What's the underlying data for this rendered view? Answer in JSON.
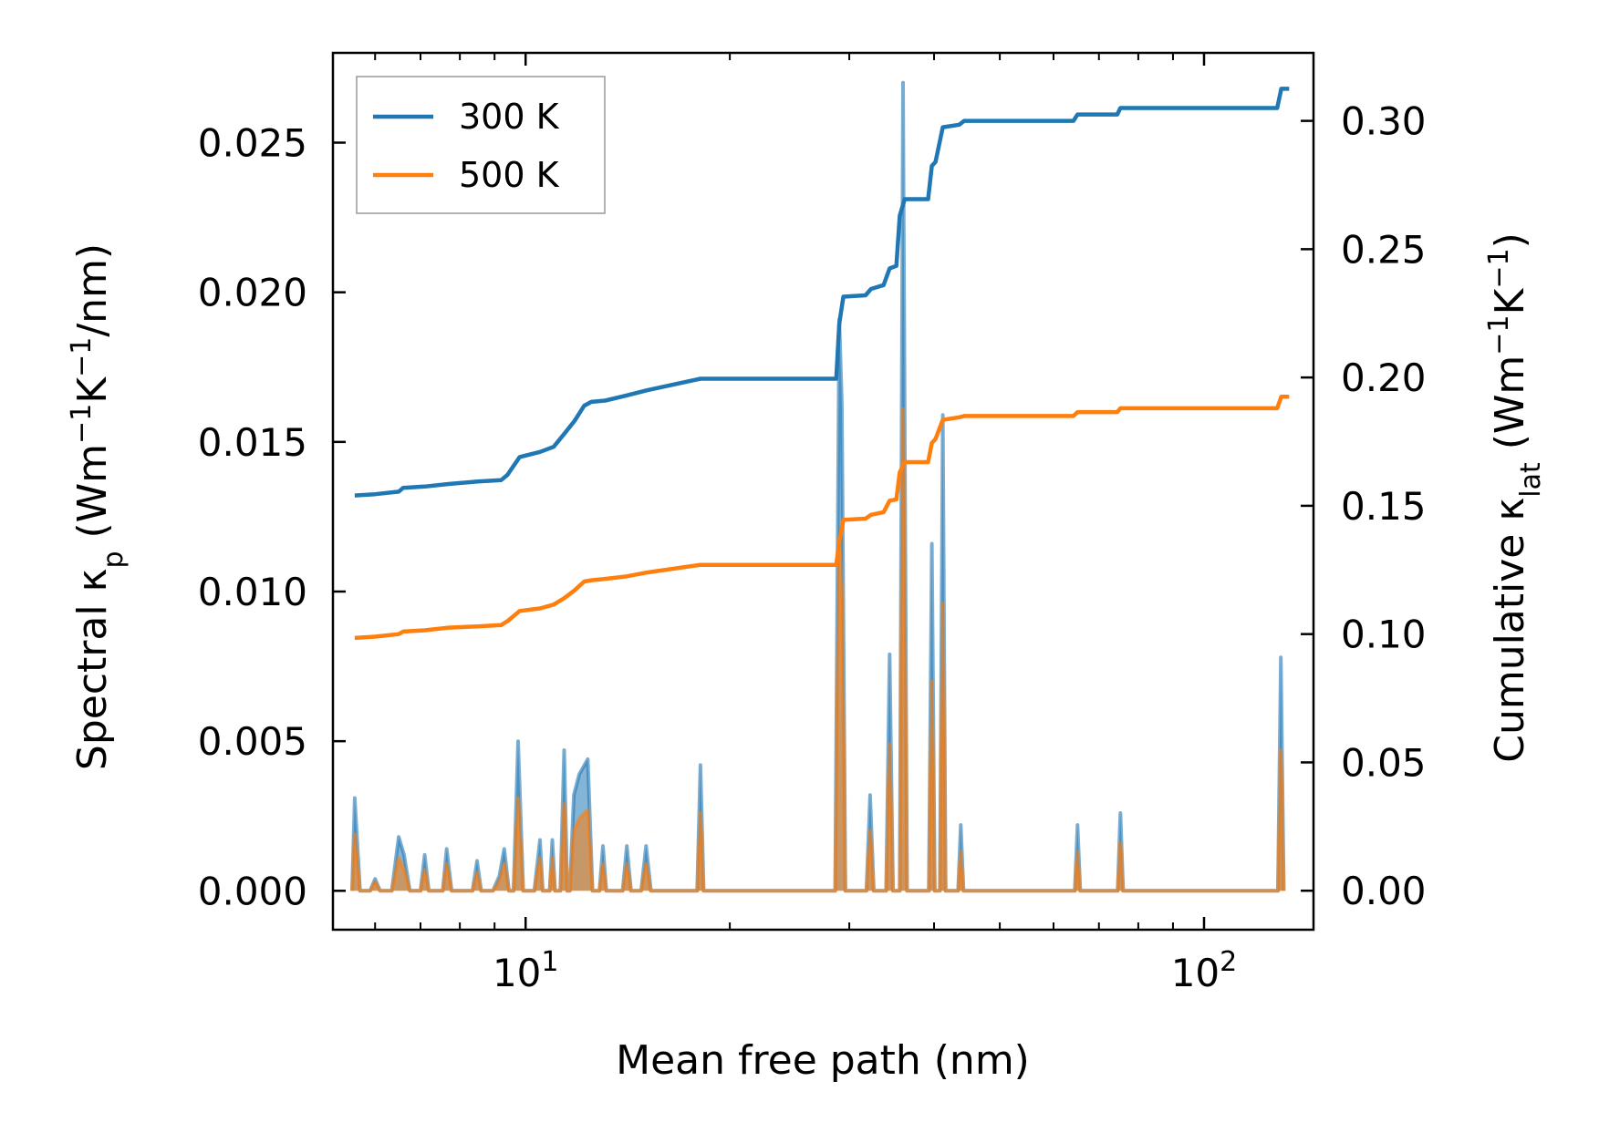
{
  "chart_data": {
    "type": "line",
    "title": "",
    "xlabel": "Mean free path (nm)",
    "ylabel_left": {
      "main": "Spectral κ",
      "sub": "p",
      "unit_pre": " (Wm",
      "sup1": "−1",
      "unit_mid": "K",
      "sup2": "−1",
      "unit_post": "/nm)"
    },
    "ylabel_right": {
      "main": "Cumulative κ",
      "sub": "lat",
      "unit_pre": " (Wm",
      "sup1": "−1",
      "unit_mid": "K",
      "sup2": "−1",
      "unit_post": ")"
    },
    "x_scale": "log",
    "xlim": [
      5.2,
      145
    ],
    "ylim_left": [
      -0.0013,
      0.028
    ],
    "ylim_right": [
      -0.0152,
      0.3265
    ],
    "x_ticks": [
      {
        "value": 10,
        "base": "10",
        "exp": "1"
      },
      {
        "value": 100,
        "base": "10",
        "exp": "2"
      }
    ],
    "y_ticks_left": [
      {
        "value": 0.0,
        "label": "0.000"
      },
      {
        "value": 0.005,
        "label": "0.005"
      },
      {
        "value": 0.01,
        "label": "0.010"
      },
      {
        "value": 0.015,
        "label": "0.015"
      },
      {
        "value": 0.02,
        "label": "0.020"
      },
      {
        "value": 0.025,
        "label": "0.025"
      }
    ],
    "y_ticks_right": [
      {
        "value": 0.0,
        "label": "0.00"
      },
      {
        "value": 0.05,
        "label": "0.05"
      },
      {
        "value": 0.1,
        "label": "0.10"
      },
      {
        "value": 0.15,
        "label": "0.15"
      },
      {
        "value": 0.2,
        "label": "0.20"
      },
      {
        "value": 0.25,
        "label": "0.25"
      },
      {
        "value": 0.3,
        "label": "0.30"
      }
    ],
    "legend": {
      "position": "top-left",
      "entries": [
        "300 K",
        "500 K"
      ]
    },
    "series": [
      {
        "name": "300 K",
        "color": "#1f77b4",
        "spectral": [
          [
            5.55,
            0.0
          ],
          [
            5.6,
            0.0031
          ],
          [
            5.7,
            0.0
          ],
          [
            5.9,
            0.0
          ],
          [
            6.0,
            0.0004
          ],
          [
            6.1,
            0.0
          ],
          [
            6.35,
            0.0
          ],
          [
            6.5,
            0.0018
          ],
          [
            6.62,
            0.0012
          ],
          [
            6.75,
            0.0
          ],
          [
            7.0,
            0.0
          ],
          [
            7.1,
            0.0012
          ],
          [
            7.2,
            0.0
          ],
          [
            7.55,
            0.0
          ],
          [
            7.65,
            0.0014
          ],
          [
            7.78,
            0.0
          ],
          [
            8.35,
            0.0
          ],
          [
            8.48,
            0.001
          ],
          [
            8.6,
            0.0
          ],
          [
            8.95,
            0.0
          ],
          [
            9.15,
            0.0005
          ],
          [
            9.3,
            0.0014
          ],
          [
            9.45,
            0.0
          ],
          [
            9.6,
            0.0
          ],
          [
            9.75,
            0.005
          ],
          [
            9.92,
            0.0
          ],
          [
            10.3,
            0.0
          ],
          [
            10.5,
            0.0017
          ],
          [
            10.6,
            0.0
          ],
          [
            10.85,
            0.0
          ],
          [
            10.95,
            0.0017
          ],
          [
            11.05,
            0.0
          ],
          [
            11.25,
            0.0
          ],
          [
            11.4,
            0.0047
          ],
          [
            11.52,
            0.0
          ],
          [
            11.62,
            0.0
          ],
          [
            11.78,
            0.0032
          ],
          [
            12.0,
            0.0039
          ],
          [
            12.35,
            0.0044
          ],
          [
            12.55,
            0.0
          ],
          [
            12.85,
            0.0
          ],
          [
            13.0,
            0.0015
          ],
          [
            13.15,
            0.0
          ],
          [
            13.9,
            0.0
          ],
          [
            14.1,
            0.0015
          ],
          [
            14.3,
            0.0
          ],
          [
            14.8,
            0.0
          ],
          [
            15.05,
            0.0015
          ],
          [
            15.3,
            0.0
          ],
          [
            17.9,
            0.0
          ],
          [
            18.1,
            0.0042
          ],
          [
            18.3,
            0.0
          ],
          [
            28.6,
            0.0
          ],
          [
            29.0,
            0.0191
          ],
          [
            29.25,
            0.0163
          ],
          [
            29.6,
            0.0
          ],
          [
            31.8,
            0.0
          ],
          [
            32.2,
            0.0032
          ],
          [
            32.6,
            0.0
          ],
          [
            34.0,
            0.0
          ],
          [
            34.4,
            0.0079
          ],
          [
            34.8,
            0.0
          ],
          [
            35.6,
            0.0
          ],
          [
            36.0,
            0.027
          ],
          [
            36.5,
            0.0
          ],
          [
            39.3,
            0.0
          ],
          [
            39.7,
            0.0116
          ],
          [
            40.1,
            0.0
          ],
          [
            40.8,
            0.0
          ],
          [
            41.2,
            0.0159
          ],
          [
            41.6,
            0.0
          ],
          [
            43.4,
            0.0
          ],
          [
            43.8,
            0.0022
          ],
          [
            44.2,
            0.0
          ],
          [
            64.5,
            0.0
          ],
          [
            65.1,
            0.0022
          ],
          [
            65.7,
            0.0
          ],
          [
            74.6,
            0.0
          ],
          [
            75.3,
            0.0026
          ],
          [
            76.0,
            0.0
          ],
          [
            128.5,
            0.0
          ],
          [
            129.8,
            0.0078
          ],
          [
            131.1,
            0.0
          ]
        ],
        "cumulative": [
          [
            5.6,
            0.154
          ],
          [
            6.0,
            0.1545
          ],
          [
            6.5,
            0.1555
          ],
          [
            6.6,
            0.157
          ],
          [
            7.1,
            0.1575
          ],
          [
            7.7,
            0.1585
          ],
          [
            8.5,
            0.1595
          ],
          [
            9.2,
            0.16
          ],
          [
            9.4,
            0.162
          ],
          [
            9.8,
            0.169
          ],
          [
            10.5,
            0.171
          ],
          [
            11.0,
            0.173
          ],
          [
            11.4,
            0.178
          ],
          [
            11.8,
            0.183
          ],
          [
            12.2,
            0.189
          ],
          [
            12.5,
            0.1905
          ],
          [
            13.1,
            0.191
          ],
          [
            14.1,
            0.193
          ],
          [
            15.1,
            0.195
          ],
          [
            18.1,
            0.1995
          ],
          [
            28.7,
            0.1995
          ],
          [
            29.0,
            0.221
          ],
          [
            29.4,
            0.2315
          ],
          [
            31.7,
            0.232
          ],
          [
            32.3,
            0.2345
          ],
          [
            33.7,
            0.236
          ],
          [
            34.4,
            0.2425
          ],
          [
            35.2,
            0.2435
          ],
          [
            35.6,
            0.263
          ],
          [
            36.2,
            0.2695
          ],
          [
            39.2,
            0.2695
          ],
          [
            39.7,
            0.2825
          ],
          [
            40.2,
            0.284
          ],
          [
            41.2,
            0.2975
          ],
          [
            43.6,
            0.2985
          ],
          [
            44.3,
            0.3
          ],
          [
            64.2,
            0.3
          ],
          [
            65.1,
            0.3025
          ],
          [
            74.5,
            0.3025
          ],
          [
            75.3,
            0.305
          ],
          [
            128.2,
            0.305
          ],
          [
            130.0,
            0.3125
          ],
          [
            133.5,
            0.3125
          ]
        ]
      },
      {
        "name": "500 K",
        "color": "#ff7f0e",
        "spectral": [
          [
            5.55,
            0.0
          ],
          [
            5.6,
            0.0019
          ],
          [
            5.7,
            0.0
          ],
          [
            5.9,
            0.0
          ],
          [
            6.0,
            0.0003
          ],
          [
            6.1,
            0.0
          ],
          [
            6.35,
            0.0
          ],
          [
            6.5,
            0.0011
          ],
          [
            6.62,
            0.0007
          ],
          [
            6.75,
            0.0
          ],
          [
            7.0,
            0.0
          ],
          [
            7.1,
            0.0007
          ],
          [
            7.2,
            0.0
          ],
          [
            7.55,
            0.0
          ],
          [
            7.65,
            0.0009
          ],
          [
            7.78,
            0.0
          ],
          [
            8.35,
            0.0
          ],
          [
            8.48,
            0.0006
          ],
          [
            8.6,
            0.0
          ],
          [
            8.95,
            0.0
          ],
          [
            9.15,
            0.0003
          ],
          [
            9.3,
            0.0009
          ],
          [
            9.45,
            0.0
          ],
          [
            9.6,
            0.0
          ],
          [
            9.75,
            0.0031
          ],
          [
            9.92,
            0.0
          ],
          [
            10.3,
            0.0
          ],
          [
            10.5,
            0.0011
          ],
          [
            10.6,
            0.0
          ],
          [
            10.85,
            0.0
          ],
          [
            10.95,
            0.0011
          ],
          [
            11.05,
            0.0
          ],
          [
            11.25,
            0.0
          ],
          [
            11.4,
            0.0029
          ],
          [
            11.52,
            0.0
          ],
          [
            11.62,
            0.0
          ],
          [
            11.78,
            0.002
          ],
          [
            12.0,
            0.0024
          ],
          [
            12.35,
            0.0027
          ],
          [
            12.55,
            0.0
          ],
          [
            12.85,
            0.0
          ],
          [
            13.0,
            0.0009
          ],
          [
            13.15,
            0.0
          ],
          [
            13.9,
            0.0
          ],
          [
            14.1,
            0.0009
          ],
          [
            14.3,
            0.0
          ],
          [
            14.8,
            0.0
          ],
          [
            15.05,
            0.0009
          ],
          [
            15.3,
            0.0
          ],
          [
            17.9,
            0.0
          ],
          [
            18.1,
            0.0026
          ],
          [
            18.3,
            0.0
          ],
          [
            28.6,
            0.0
          ],
          [
            29.0,
            0.0118
          ],
          [
            29.25,
            0.01
          ],
          [
            29.6,
            0.0
          ],
          [
            31.8,
            0.0
          ],
          [
            32.2,
            0.002
          ],
          [
            32.6,
            0.0
          ],
          [
            34.0,
            0.0
          ],
          [
            34.4,
            0.0049
          ],
          [
            34.8,
            0.0
          ],
          [
            35.6,
            0.0
          ],
          [
            36.0,
            0.0161
          ],
          [
            36.5,
            0.0
          ],
          [
            39.3,
            0.0
          ],
          [
            39.7,
            0.007
          ],
          [
            40.1,
            0.0
          ],
          [
            40.8,
            0.0
          ],
          [
            41.2,
            0.0096
          ],
          [
            41.6,
            0.0
          ],
          [
            43.4,
            0.0
          ],
          [
            43.8,
            0.0013
          ],
          [
            44.2,
            0.0
          ],
          [
            64.5,
            0.0
          ],
          [
            65.1,
            0.0013
          ],
          [
            65.7,
            0.0
          ],
          [
            74.6,
            0.0
          ],
          [
            75.3,
            0.0016
          ],
          [
            76.0,
            0.0
          ],
          [
            128.5,
            0.0
          ],
          [
            129.8,
            0.0047
          ],
          [
            131.1,
            0.0
          ]
        ],
        "cumulative": [
          [
            5.6,
            0.0985
          ],
          [
            6.0,
            0.099
          ],
          [
            6.5,
            0.1
          ],
          [
            6.6,
            0.101
          ],
          [
            7.1,
            0.1015
          ],
          [
            7.7,
            0.1025
          ],
          [
            8.5,
            0.103
          ],
          [
            9.2,
            0.1035
          ],
          [
            9.4,
            0.105
          ],
          [
            9.8,
            0.109
          ],
          [
            10.5,
            0.11
          ],
          [
            11.0,
            0.1115
          ],
          [
            11.4,
            0.114
          ],
          [
            11.8,
            0.117
          ],
          [
            12.2,
            0.1205
          ],
          [
            12.5,
            0.121
          ],
          [
            13.1,
            0.1215
          ],
          [
            14.1,
            0.1225
          ],
          [
            15.1,
            0.124
          ],
          [
            18.1,
            0.127
          ],
          [
            28.7,
            0.127
          ],
          [
            29.0,
            0.136
          ],
          [
            29.4,
            0.1445
          ],
          [
            31.7,
            0.145
          ],
          [
            32.3,
            0.1465
          ],
          [
            33.7,
            0.1475
          ],
          [
            34.4,
            0.152
          ],
          [
            35.2,
            0.1525
          ],
          [
            35.6,
            0.163
          ],
          [
            36.2,
            0.167
          ],
          [
            39.2,
            0.167
          ],
          [
            39.7,
            0.1745
          ],
          [
            40.2,
            0.176
          ],
          [
            41.2,
            0.1835
          ],
          [
            43.6,
            0.1845
          ],
          [
            44.3,
            0.185
          ],
          [
            64.2,
            0.185
          ],
          [
            65.1,
            0.1865
          ],
          [
            74.5,
            0.1865
          ],
          [
            75.3,
            0.188
          ],
          [
            128.2,
            0.188
          ],
          [
            130.0,
            0.1925
          ],
          [
            133.5,
            0.1925
          ]
        ]
      }
    ]
  }
}
